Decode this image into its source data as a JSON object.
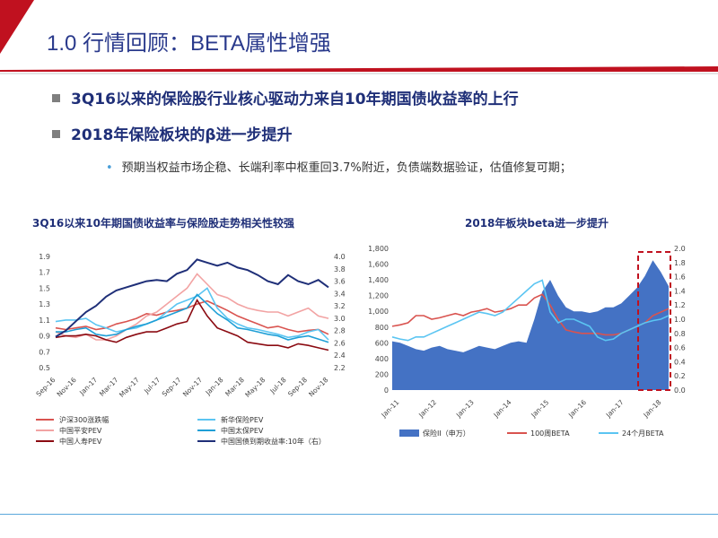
{
  "title": "1.0 行情回顾：BETA属性增强",
  "bullets": [
    "3Q16以来的保险股行业核心驱动力来自10年期国债收益率的上行",
    "2018年保险板块的β进一步提升"
  ],
  "sub_bullet": "预期当权益市场企稳、长端利率中枢重回3.7%附近，负债端数据验证，估值修复可期；",
  "colors": {
    "red": "#c0111f",
    "navy": "#1f2f78",
    "blue": "#4472c4",
    "light_blue": "#5bc5f2",
    "dark_red": "#8b0b12",
    "pink": "#f2a3a3",
    "salmon": "#d9534f",
    "title_blue": "#2a3a8c"
  },
  "chart_data": [
    {
      "type": "line",
      "title": "3Q16以来10年期国债收益率与保险股走势相关性较强",
      "x_ticks": [
        "Sep-16",
        "Nov-16",
        "Jan-17",
        "Mar-17",
        "May-17",
        "Jul-17",
        "Sep-17",
        "Nov-17",
        "Jan-18",
        "Mar-18",
        "May-18",
        "Jul-18",
        "Sep-18",
        "Nov-18"
      ],
      "y_ticks_left": [
        "1.9",
        "1.7",
        "1.5",
        "1.3",
        "1.1",
        "0.9",
        "0.7",
        "0.5"
      ],
      "y_ticks_right": [
        "4.0",
        "3.8",
        "3.6",
        "3.4",
        "3.2",
        "3.0",
        "2.8",
        "2.6",
        "2.4",
        "2.2"
      ],
      "ylim_left": [
        0.5,
        1.9
      ],
      "ylim_right": [
        2.2,
        4.0
      ],
      "series": [
        {
          "name": "沪深300涨跌幅",
          "axis": "left",
          "color": "#d9534f",
          "values": [
            1.0,
            0.98,
            1.0,
            1.02,
            0.98,
            1.0,
            1.05,
            1.08,
            1.12,
            1.18,
            1.16,
            1.2,
            1.22,
            1.25,
            1.3,
            1.34,
            1.28,
            1.22,
            1.15,
            1.1,
            1.05,
            1.0,
            1.02,
            0.98,
            0.95,
            0.97,
            0.98,
            0.92
          ]
        },
        {
          "name": "新华保险PEV",
          "axis": "left",
          "color": "#5bc5f2",
          "values": [
            1.08,
            1.1,
            1.1,
            1.12,
            1.04,
            1.0,
            0.95,
            0.98,
            1.0,
            1.05,
            1.1,
            1.2,
            1.3,
            1.35,
            1.4,
            1.5,
            1.25,
            1.12,
            1.05,
            1.0,
            0.98,
            0.95,
            0.92,
            0.88,
            0.9,
            0.95,
            0.98,
            0.85
          ]
        },
        {
          "name": "中国平安PEV",
          "axis": "left",
          "color": "#f2a3a3",
          "values": [
            0.95,
            0.9,
            0.88,
            0.92,
            0.85,
            0.85,
            0.9,
            0.98,
            1.05,
            1.15,
            1.2,
            1.3,
            1.4,
            1.5,
            1.68,
            1.55,
            1.42,
            1.38,
            1.3,
            1.25,
            1.22,
            1.2,
            1.2,
            1.15,
            1.2,
            1.25,
            1.15,
            1.12
          ]
        },
        {
          "name": "中国太保PEV",
          "axis": "left",
          "color": "#1f9fd6",
          "values": [
            0.95,
            0.95,
            0.98,
            1.0,
            0.92,
            0.9,
            0.92,
            0.98,
            1.02,
            1.05,
            1.1,
            1.15,
            1.2,
            1.25,
            1.42,
            1.3,
            1.18,
            1.1,
            1.0,
            0.98,
            0.95,
            0.92,
            0.9,
            0.85,
            0.88,
            0.9,
            0.86,
            0.82
          ]
        },
        {
          "name": "中国人寿PEV",
          "axis": "left",
          "color": "#8b0b12",
          "values": [
            0.88,
            0.9,
            0.9,
            0.92,
            0.9,
            0.85,
            0.82,
            0.88,
            0.92,
            0.95,
            0.95,
            1.0,
            1.05,
            1.08,
            1.35,
            1.15,
            1.0,
            0.95,
            0.9,
            0.82,
            0.8,
            0.78,
            0.78,
            0.75,
            0.8,
            0.78,
            0.75,
            0.72
          ]
        },
        {
          "name": "中国国债到期收益率:10年（右）",
          "axis": "right",
          "color": "#1f2f78",
          "values": [
            2.7,
            2.8,
            2.95,
            3.1,
            3.2,
            3.35,
            3.45,
            3.5,
            3.55,
            3.6,
            3.62,
            3.6,
            3.72,
            3.78,
            3.95,
            3.9,
            3.85,
            3.9,
            3.82,
            3.78,
            3.7,
            3.6,
            3.55,
            3.7,
            3.6,
            3.55,
            3.62,
            3.5
          ]
        }
      ]
    },
    {
      "type": "area",
      "title": "2018年板块beta进一步提升",
      "x_ticks": [
        "Jan-11",
        "Jan-12",
        "Jan-13",
        "Jan-14",
        "Jan-15",
        "Jan-16",
        "Jan-17",
        "Jan-18"
      ],
      "y_ticks_left": [
        "1,800",
        "1,600",
        "1,400",
        "1,200",
        "1,000",
        "800",
        "600",
        "400",
        "200",
        "0"
      ],
      "y_ticks_right": [
        "2.0",
        "1.8",
        "1.6",
        "1.4",
        "1.2",
        "1.0",
        "0.8",
        "0.6",
        "0.4",
        "0.2",
        "0.0"
      ],
      "ylim_left": [
        0,
        1800
      ],
      "ylim_right": [
        0,
        2.0
      ],
      "series": [
        {
          "name": "保险II（申万）",
          "axis": "left",
          "color": "#4472c4",
          "values": [
            620,
            600,
            560,
            520,
            500,
            540,
            560,
            520,
            500,
            480,
            520,
            560,
            540,
            520,
            560,
            600,
            620,
            600,
            900,
            1250,
            1400,
            1200,
            1050,
            1000,
            1000,
            980,
            1000,
            1050,
            1050,
            1100,
            1200,
            1300,
            1450,
            1650,
            1500,
            1320
          ]
        },
        {
          "name": "100周BETA",
          "axis": "right",
          "color": "#d9534f",
          "values": [
            0.9,
            0.92,
            0.95,
            1.05,
            1.05,
            1.0,
            1.02,
            1.05,
            1.08,
            1.05,
            1.1,
            1.12,
            1.15,
            1.1,
            1.12,
            1.15,
            1.2,
            1.2,
            1.3,
            1.35,
            1.2,
            1.0,
            0.85,
            0.82,
            0.8,
            0.8,
            0.8,
            0.78,
            0.78,
            0.8,
            0.85,
            0.9,
            0.95,
            1.05,
            1.1,
            1.15
          ]
        },
        {
          "name": "24个月BETA",
          "axis": "right",
          "color": "#5bc5f2",
          "values": [
            0.75,
            0.72,
            0.7,
            0.75,
            0.75,
            0.8,
            0.85,
            0.9,
            0.95,
            1.0,
            1.05,
            1.1,
            1.08,
            1.05,
            1.1,
            1.2,
            1.3,
            1.4,
            1.5,
            1.55,
            1.1,
            0.95,
            1.0,
            1.0,
            0.95,
            0.9,
            0.75,
            0.7,
            0.72,
            0.8,
            0.85,
            0.9,
            0.95,
            0.98,
            1.0,
            1.05
          ]
        }
      ],
      "legend_placement": "bottom"
    }
  ]
}
